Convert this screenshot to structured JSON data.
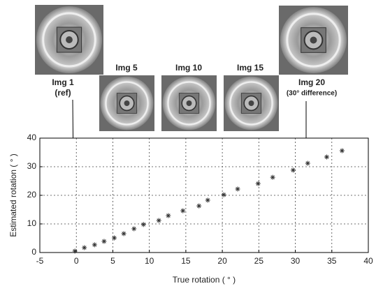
{
  "chart_data": {
    "type": "scatter",
    "x_label": "True rotation ( ° )",
    "y_label": "Estimated rotation ( ° )",
    "annotations": [
      {
        "label": "Img 1",
        "sublabel": "(ref)"
      },
      {
        "label": "Img 5"
      },
      {
        "label": "Img 10"
      },
      {
        "label": "Img 15"
      },
      {
        "label": "Img 20",
        "sublabel": "(30° difference)"
      }
    ],
    "x": [
      -0.2,
      1.1,
      2.5,
      3.8,
      5.2,
      6.5,
      7.9,
      9.2,
      11.3,
      12.6,
      14.6,
      16.8,
      18.0,
      20.2,
      22.1,
      24.9,
      26.9,
      29.7,
      31.7,
      34.3,
      36.4
    ],
    "values": [
      0.5,
      1.7,
      2.7,
      3.9,
      5.1,
      6.6,
      8.3,
      9.8,
      11.2,
      12.9,
      14.6,
      16.3,
      18.3,
      20.2,
      22.2,
      24.1,
      26.3,
      28.8,
      31.2,
      33.4,
      35.6
    ],
    "color": "#333333",
    "xlim": [
      -5,
      40
    ],
    "xticks": [
      -5,
      0,
      5,
      10,
      15,
      20,
      25,
      30,
      35,
      40
    ],
    "ylim": [
      0,
      40
    ],
    "yticks": [
      0,
      10,
      20,
      30,
      40
    ],
    "grid": true
  }
}
